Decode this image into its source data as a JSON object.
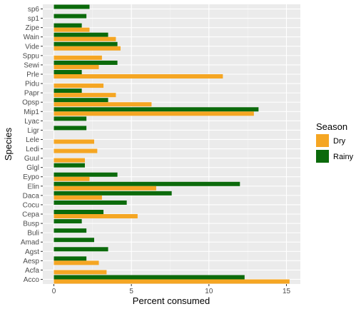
{
  "chart_data": {
    "type": "bar",
    "orientation": "horizontal",
    "xlabel": "Percent consumed",
    "ylabel": "Species",
    "xlim": [
      0,
      15.5
    ],
    "xticks": [
      0,
      5,
      10,
      15
    ],
    "grid": true,
    "legend": {
      "title": "Season",
      "placement": "right"
    },
    "categories": [
      "sp6",
      "sp1",
      "Zipe",
      "Wain",
      "Vide",
      "Sppu",
      "Sewi",
      "Prle",
      "Pidu",
      "Papr",
      "Opsp",
      "Mip1",
      "Lyac",
      "Ligr",
      "Lele",
      "Ledi",
      "Guul",
      "Glgl",
      "Eypo",
      "Elin",
      "Daca",
      "Cocu",
      "Cepa",
      "Busp",
      "Buli",
      "Amad",
      "Agst",
      "Aesp",
      "Acfa",
      "Acco"
    ],
    "series": [
      {
        "name": "Dry",
        "color": "#F5A623",
        "values": [
          0,
          0,
          2.3,
          4.0,
          4.3,
          3.1,
          2.9,
          10.9,
          3.2,
          4.0,
          6.3,
          12.9,
          0,
          0,
          2.6,
          2.8,
          2.0,
          0,
          2.3,
          6.6,
          3.1,
          0,
          5.4,
          0,
          0,
          0,
          0,
          2.9,
          3.4,
          15.2
        ]
      },
      {
        "name": "Rainy",
        "color": "#0B6A0B",
        "values": [
          2.3,
          2.1,
          1.8,
          3.5,
          4.1,
          0,
          4.1,
          1.8,
          0,
          1.8,
          3.5,
          13.2,
          2.1,
          2.1,
          0,
          0,
          0,
          2.0,
          4.1,
          12.0,
          7.6,
          4.7,
          3.2,
          1.8,
          2.1,
          2.6,
          3.5,
          2.1,
          0,
          12.3
        ]
      }
    ]
  }
}
